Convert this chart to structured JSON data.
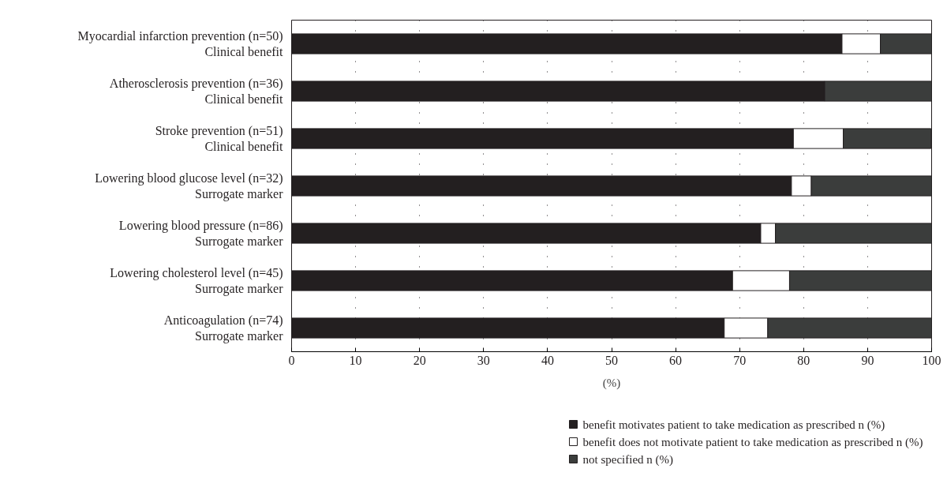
{
  "chart_data": {
    "type": "bar",
    "orientation": "horizontal",
    "stacked": true,
    "xlabel": "(%)",
    "categories": [
      "Myocardial infarction prevention (n=50)\nClinical benefit",
      "Atherosclerosis prevention (n=36)\nClinical benefit",
      "Stroke prevention (n=51)\nClinical benefit",
      "Lowering blood glucose level (n=32)\nSurrogate marker",
      "Lowering blood pressure (n=86)\nSurrogate marker",
      "Lowering cholesterol level (n=45)\nSurrogate marker",
      "Anticoagulation (n=74)\nSurrogate marker"
    ],
    "series": [
      {
        "name": "benefit motivates patient to take medication as prescribed n (%)",
        "color": "#231f20",
        "values": [
          86.0,
          83.3,
          78.4,
          78.1,
          73.3,
          68.9,
          67.6
        ]
      },
      {
        "name": "benefit does not motivate patient to take medication as prescribed n (%)",
        "color": "#ffffff",
        "values": [
          6.0,
          null,
          7.8,
          3.1,
          2.3,
          8.9,
          6.8
        ]
      },
      {
        "name": "not specified n (%)",
        "color": "#3b3d3c",
        "values": [
          8.0,
          16.7,
          13.7,
          18.8,
          24.4,
          22.2,
          25.7
        ]
      }
    ],
    "xlim": [
      0,
      100
    ],
    "xticks": [
      0,
      10,
      20,
      30,
      40,
      50,
      60,
      70,
      80,
      90,
      100
    ],
    "grid": "x",
    "legend": "bottom"
  }
}
